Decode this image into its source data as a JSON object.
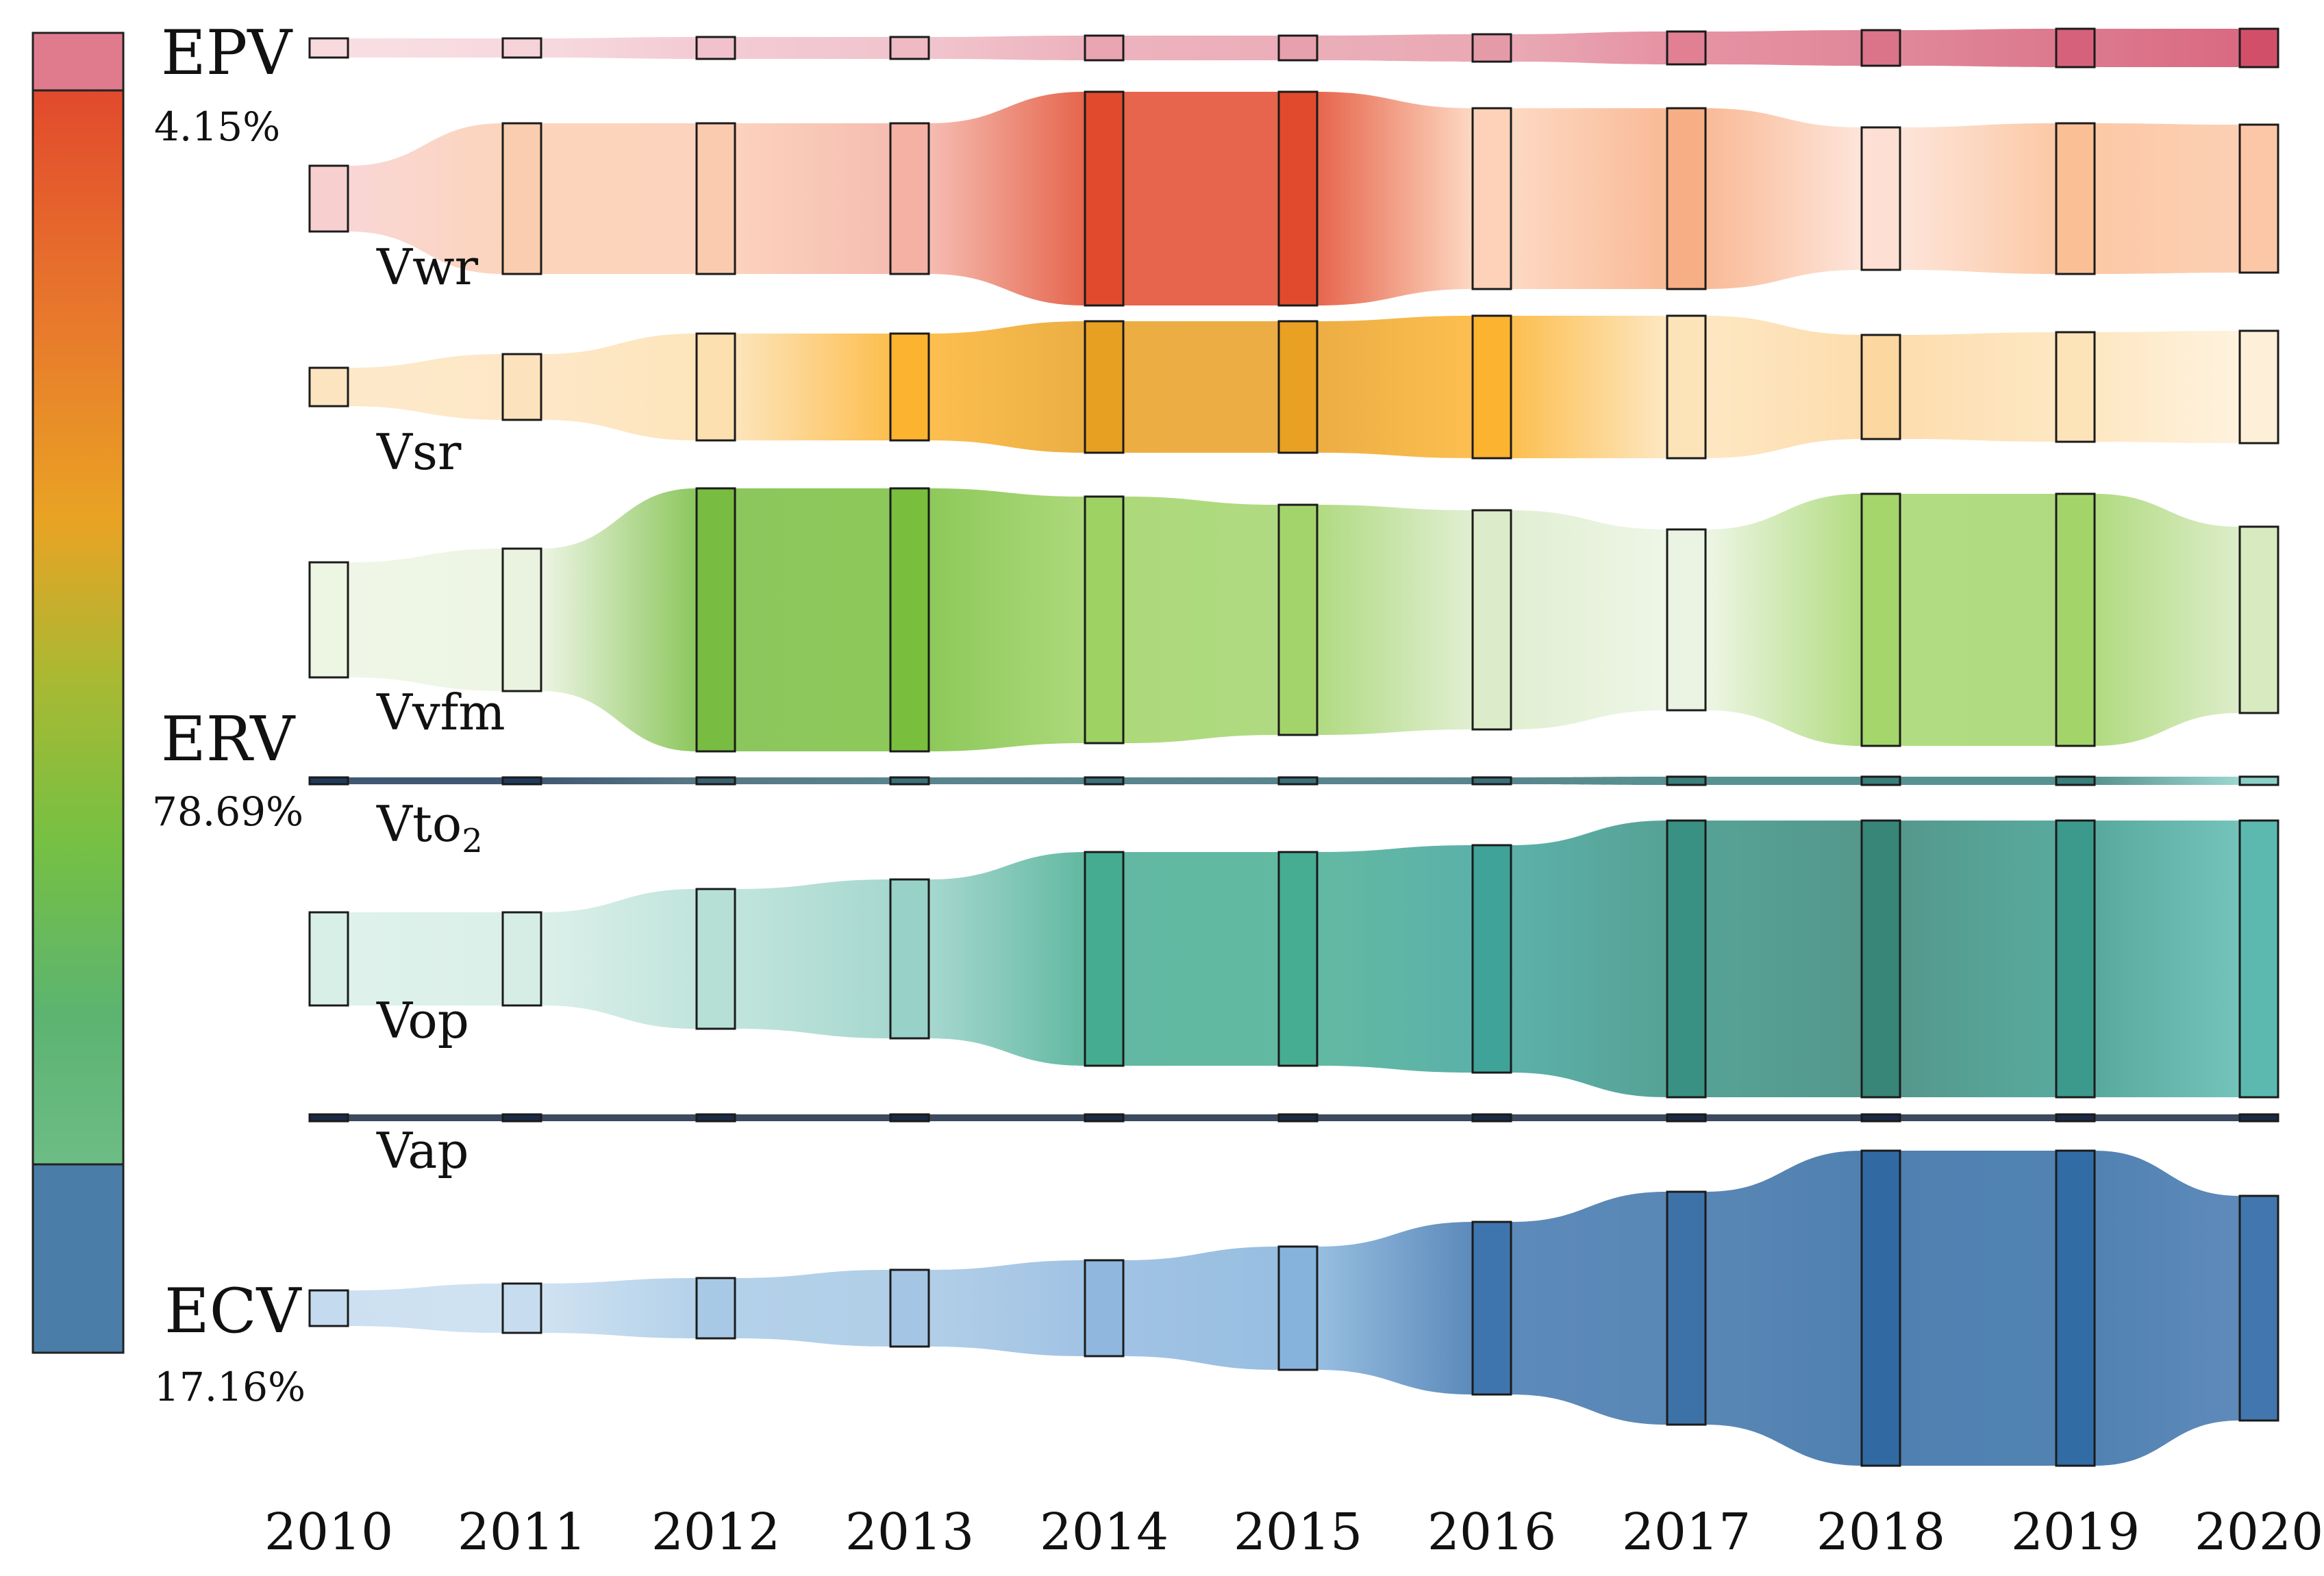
{
  "chart_data": {
    "type": "sankey",
    "title": "",
    "years": [
      "2010",
      "2011",
      "2012",
      "2013",
      "2014",
      "2015",
      "2016",
      "2017",
      "2018",
      "2019",
      "2020"
    ],
    "groups": [
      {
        "name": "EPV",
        "share": "4.15%",
        "color": "#d9657b"
      },
      {
        "name": "ERV",
        "share": "78.69%",
        "color": "#77c043"
      },
      {
        "name": "ECV",
        "share": "17.16%",
        "color": "#3f74a8"
      }
    ],
    "colorbar": {
      "segments": [
        "#e07b8e",
        "#e34a2d",
        "#e8852a",
        "#e8a323",
        "#77c043",
        "#57b36c",
        "#6fbc84",
        "#4a7ea9"
      ]
    },
    "series": [
      {
        "key": "epv",
        "name": "EPV",
        "label": "",
        "group": "EPV",
        "values": [
          0.7,
          0.7,
          0.8,
          0.8,
          0.9,
          0.9,
          1.0,
          1.2,
          1.3,
          1.4,
          1.4
        ],
        "colors": [
          "#f7d9de",
          "#f5d3d9",
          "#f1c2cb",
          "#efbac4",
          "#e9a5b2",
          "#e7a0ad",
          "#e59aa8",
          "#e17f93",
          "#db7389",
          "#d6617a",
          "#d24f6a"
        ]
      },
      {
        "key": "vwr",
        "name": "Vwr",
        "label": "Vwr",
        "group": "ERV",
        "values": [
          2.4,
          5.5,
          5.5,
          5.5,
          7.8,
          7.8,
          6.6,
          6.6,
          5.2,
          5.5,
          5.4
        ],
        "colors": [
          "#f8cfcf",
          "#fbcdb0",
          "#fbcbb0",
          "#f4b1a4",
          "#e14a2d",
          "#e24a2d",
          "#fdd2b8",
          "#f8ae84",
          "#fde0d3",
          "#fbbf96",
          "#fcc7a6"
        ]
      },
      {
        "key": "vsr",
        "name": "Vsr",
        "label": "Vsr",
        "group": "ERV",
        "values": [
          1.4,
          2.4,
          3.9,
          3.9,
          4.8,
          4.8,
          5.2,
          5.2,
          3.8,
          4.0,
          4.1
        ],
        "colors": [
          "#fde4c1",
          "#fde3bd",
          "#fde0b0",
          "#fcb330",
          "#e8a022",
          "#e9a023",
          "#fcb330",
          "#fde3b8",
          "#fdd7a0",
          "#fde3b8",
          "#fef0d8"
        ]
      },
      {
        "key": "vvfm",
        "name": "Vvfm",
        "label": "Vvfm",
        "group": "ERV",
        "values": [
          4.2,
          5.2,
          9.6,
          9.6,
          9.0,
          8.4,
          8.0,
          6.6,
          9.2,
          9.2,
          6.8
        ],
        "colors": [
          "#edf5e3",
          "#eaf3df",
          "#78bd41",
          "#79bf3d",
          "#9ed263",
          "#a2d46b",
          "#dcecca",
          "#ebf4e2",
          "#a4d66b",
          "#a3d469",
          "#d7eac0"
        ]
      },
      {
        "key": "vto2",
        "name": "Vto2",
        "label": "Vto",
        "label_sub": "2",
        "group": "ERV",
        "values": [
          0.1,
          0.1,
          0.2,
          0.2,
          0.2,
          0.2,
          0.2,
          0.3,
          0.3,
          0.3,
          0.3
        ],
        "colors": [
          "#1f3b5a",
          "#1f3b5a",
          "#3a6070",
          "#3a6f7a",
          "#3a6f7a",
          "#3a6f7a",
          "#3a6f7a",
          "#3a7f7c",
          "#3a7f7c",
          "#3a7f7c",
          "#8ad0c8"
        ]
      },
      {
        "key": "vop",
        "name": "Vop",
        "label": "Vop",
        "group": "ERV",
        "values": [
          3.4,
          3.4,
          5.1,
          5.8,
          7.8,
          7.8,
          8.3,
          10.1,
          10.1,
          10.1,
          10.1
        ],
        "colors": [
          "#d8efe8",
          "#d6ede6",
          "#b6e0d6",
          "#97d1c7",
          "#46ac91",
          "#47ad92",
          "#3fa39a",
          "#389183",
          "#378678",
          "#3b9a8c",
          "#5bb9b0"
        ]
      },
      {
        "key": "vap",
        "name": "Vap",
        "label": "Vap",
        "group": "ERV",
        "values": [
          0.1,
          0.1,
          0.1,
          0.1,
          0.1,
          0.1,
          0.1,
          0.1,
          0.1,
          0.1,
          0.1
        ],
        "colors": [
          "#1a2a44",
          "#1a2a44",
          "#1a2a44",
          "#1a2a44",
          "#1a2a44",
          "#1a2a44",
          "#1a2a44",
          "#1a2a44",
          "#1a2a44",
          "#1a2a44",
          "#1a2a44"
        ]
      },
      {
        "key": "ecv",
        "name": "ECV",
        "label": "",
        "group": "ECV",
        "values": [
          1.3,
          1.8,
          2.2,
          2.8,
          3.5,
          4.5,
          6.3,
          8.5,
          11.5,
          11.5,
          8.2
        ],
        "colors": [
          "#c4dbef",
          "#c7ddef",
          "#a7c9e6",
          "#a4c6e4",
          "#90b8df",
          "#85b3dc",
          "#3f75ae",
          "#3c72a8",
          "#316aa3",
          "#326ca5",
          "#4276ae"
        ]
      }
    ]
  }
}
